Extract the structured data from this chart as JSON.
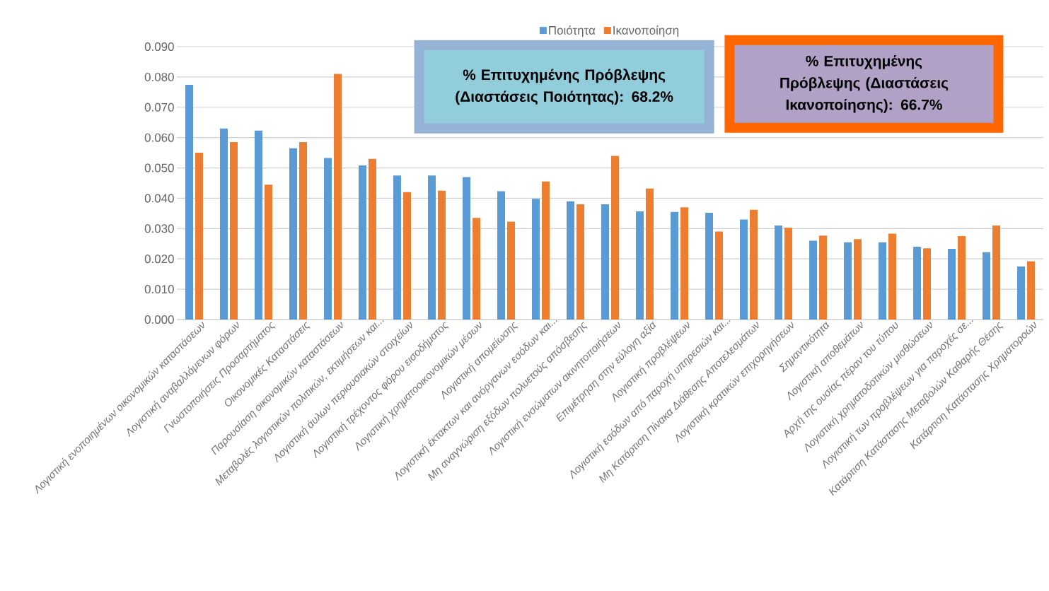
{
  "chart_data": {
    "type": "bar",
    "categories": [
      "Λογιστική ενοποιημένων οικονομικών καταστάσεων",
      "Λογιστική αναβαλλόμενων φόρων",
      "Γνωστοποιήσεις Προσαρτήματος",
      "Οικονομικές Καταστάσεις",
      "Παρουσίαση οικονομικών καταστάσεων",
      "Μεταβολές λογιστικών πολιτικών, εκτιμήσεων και...",
      "Λογιστική άυλων περιουσιακών στοιχείων",
      "Λογιστική τρέχοντος φόρου εισοδήματος",
      "Λογιστική χρηματοοικονομικών μέσων",
      "Λογιστική απομείωσης",
      "Λογιστική έκτακτων και ανόργανων εσόδων και...",
      "Μη αναγνώριση εξόδων πολυετούς απόσβεσης",
      "Λογιστική ενσώματων ακινητοποιήσεων",
      "Επιμέτρηση στην εύλογη αξία",
      "Λογιστική προβλέψεων",
      "Λογιστική εσόδων από παροχή υπηρεσιών και...",
      "Μη Κατάρτιση Πίνακα Διάθεσης Αποτελεσμάτων",
      "Λογιστική κρατικών επιχορηγήσεων",
      "Σημαντικότητα",
      "Λογιστική αποθεμάτων",
      "Αρχή της ουσίας πέραν του τύπου",
      "Λογιστική χρηματοδοτικών μισθώσεων",
      "Λογιστική των προβλέψεων για παροχές σε...",
      "Κατάρτιση Κατάστασης Μεταβολών Καθαρής Θέσης",
      "Κατάρτιση Κατάστασης Χρηματοροών"
    ],
    "series": [
      {
        "name": "Ποιότητα",
        "color": "#5b9bd5",
        "values": [
          0.0774,
          0.063,
          0.0623,
          0.0565,
          0.0533,
          0.0508,
          0.0475,
          0.0475,
          0.047,
          0.0423,
          0.0398,
          0.039,
          0.038,
          0.0357,
          0.0355,
          0.0352,
          0.033,
          0.031,
          0.026,
          0.0255,
          0.0255,
          0.024,
          0.0233,
          0.0222,
          0.0175
        ]
      },
      {
        "name": "Ικανοποίηση",
        "color": "#ed7d31",
        "values": [
          0.055,
          0.0585,
          0.0445,
          0.0585,
          0.081,
          0.053,
          0.042,
          0.0425,
          0.0335,
          0.0323,
          0.0455,
          0.038,
          0.054,
          0.0432,
          0.037,
          0.029,
          0.0362,
          0.0303,
          0.0277,
          0.0265,
          0.0283,
          0.0235,
          0.0275,
          0.031,
          0.0192
        ]
      }
    ],
    "ylim": [
      0,
      0.09
    ],
    "yticks": [
      {
        "value": 0,
        "label": "0.000"
      },
      {
        "value": 0.01,
        "label": "0.010"
      },
      {
        "value": 0.02,
        "label": "0.020"
      },
      {
        "value": 0.03,
        "label": "0.030"
      },
      {
        "value": 0.04,
        "label": "0.040"
      },
      {
        "value": 0.05,
        "label": "0.050"
      },
      {
        "value": 0.06,
        "label": "0.060"
      },
      {
        "value": 0.07,
        "label": "0.070"
      },
      {
        "value": 0.08,
        "label": "0.080"
      },
      {
        "value": 0.09,
        "label": "0.090"
      }
    ],
    "grid": "y",
    "legend": "top",
    "annotations": [
      "% Επιτυχημένης Πρόβλεψης (Διαστάσεις Ποιότητας): 68.2%",
      "% Επιτυχημένης Πρόβλεψης (Διαστάσεις Ικανοποίησης): 66.7%"
    ]
  }
}
